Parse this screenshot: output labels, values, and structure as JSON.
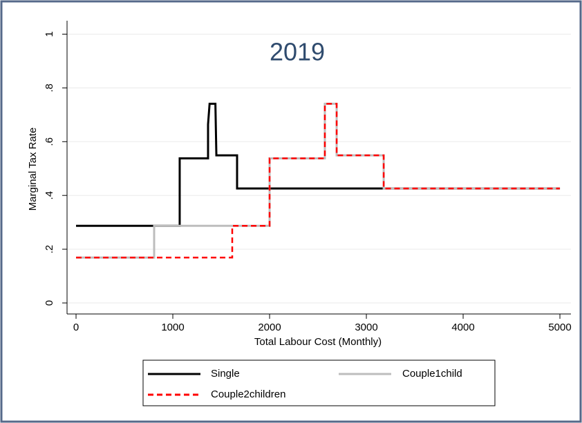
{
  "chart_data": {
    "type": "line",
    "annotation": "2019",
    "xlabel": "Total Labour Cost (Monthly)",
    "ylabel": "Marginal Tax Rate",
    "xlim": [
      -93,
      5114
    ],
    "ylim": [
      -0.041,
      1.05
    ],
    "xticks": [
      0,
      1000,
      2000,
      3000,
      4000,
      5000
    ],
    "yticks": [
      0,
      {
        "value": 0.2,
        "label": ".2"
      },
      {
        "value": 0.4,
        "label": ".4"
      },
      {
        "value": 0.6,
        "label": ".6"
      },
      {
        "value": 0.8,
        "label": ".8"
      },
      1
    ],
    "grid": true,
    "legend": "bottom",
    "series": [
      {
        "name": "Single",
        "color": "#000000",
        "dash": false,
        "x": [
          0,
          1071,
          1071,
          1364,
          1364,
          1380,
          1440,
          1450,
          1664,
          1664,
          5000
        ],
        "values": [
          0.287,
          0.287,
          0.538,
          0.538,
          0.664,
          0.741,
          0.741,
          0.549,
          0.549,
          0.426,
          0.426
        ]
      },
      {
        "name": "Couple1child",
        "color": "#bdbdbd",
        "dash": false,
        "x": [
          0,
          807,
          807,
          2000,
          2000,
          2571,
          2571,
          2693,
          2693,
          3179,
          3179,
          5000
        ],
        "values": [
          0.169,
          0.169,
          0.287,
          0.287,
          0.538,
          0.538,
          0.741,
          0.741,
          0.549,
          0.549,
          0.426,
          0.426
        ]
      },
      {
        "name": "Couple2children",
        "color": "#ff0000",
        "dash": true,
        "x": [
          0,
          1614,
          1614,
          2000,
          2000,
          2571,
          2571,
          2693,
          2693,
          3179,
          3179,
          5000
        ],
        "values": [
          0.169,
          0.169,
          0.287,
          0.287,
          0.538,
          0.538,
          0.741,
          0.741,
          0.549,
          0.549,
          0.426,
          0.426
        ]
      }
    ]
  }
}
